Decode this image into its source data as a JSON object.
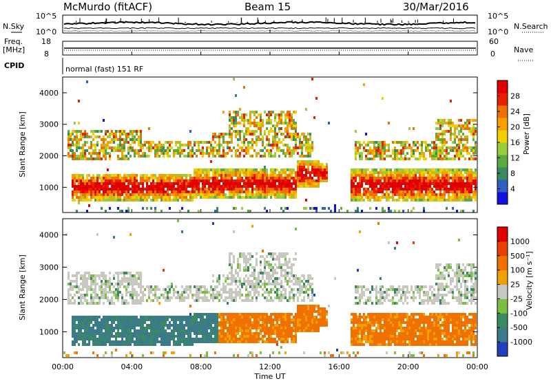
{
  "header": {
    "station": "McMurdo (fitACF)",
    "beam": "Beam 15",
    "date": "30/Mar/2016"
  },
  "status_panels": {
    "left_labels": {
      "nsky": "N.Sky",
      "freq": "Freq.",
      "freq_unit": "[MHz]",
      "cpid": "CPID"
    },
    "right_labels": {
      "nsearch": "N.Search",
      "nave": "Nave"
    },
    "noise_axis_ticks": [
      "10^5",
      "10^0"
    ],
    "freq_axis_ticks": [
      "18",
      "8"
    ],
    "nave_axis_ticks": [
      "60",
      "0"
    ],
    "cpid_text": "normal (fast) 151 RF"
  },
  "chart_data": [
    {
      "type": "heatmap",
      "name": "power",
      "ylabel": "Slant Range [km]",
      "ylim": [
        200,
        4500
      ],
      "yticks": [
        "1000",
        "2000",
        "3000",
        "4000"
      ],
      "colorbar": {
        "label": "Power [dB]",
        "ticks": [
          "4",
          "8",
          "12",
          "16",
          "20",
          "24",
          "28"
        ],
        "colors": [
          "#1010e0",
          "#2f5fc0",
          "#3a8a60",
          "#5aaa40",
          "#98cc3a",
          "#f0d000",
          "#f8a000",
          "#f07000",
          "#e82000",
          "#e00000"
        ]
      }
    },
    {
      "type": "heatmap",
      "name": "velocity",
      "ylabel": "Slant Range [km]",
      "ylim": [
        200,
        4500
      ],
      "yticks": [
        "1000",
        "2000",
        "3000",
        "4000"
      ],
      "xlabel": "Time UT",
      "xticks": [
        "00:00",
        "04:00",
        "08:00",
        "12:00",
        "16:00",
        "20:00",
        "00:00"
      ],
      "colorbar": {
        "label": "Velocity [m s⁻¹]",
        "ticks": [
          "1000",
          "500",
          "100",
          "25",
          "-25",
          "-100",
          "-500",
          "-1000"
        ],
        "colors": [
          "#2040c0",
          "#3a7a8a",
          "#3a8a60",
          "#7ac040",
          "#c8c8c0",
          "#f0a000",
          "#f07000",
          "#e84000",
          "#e00000"
        ]
      }
    }
  ]
}
